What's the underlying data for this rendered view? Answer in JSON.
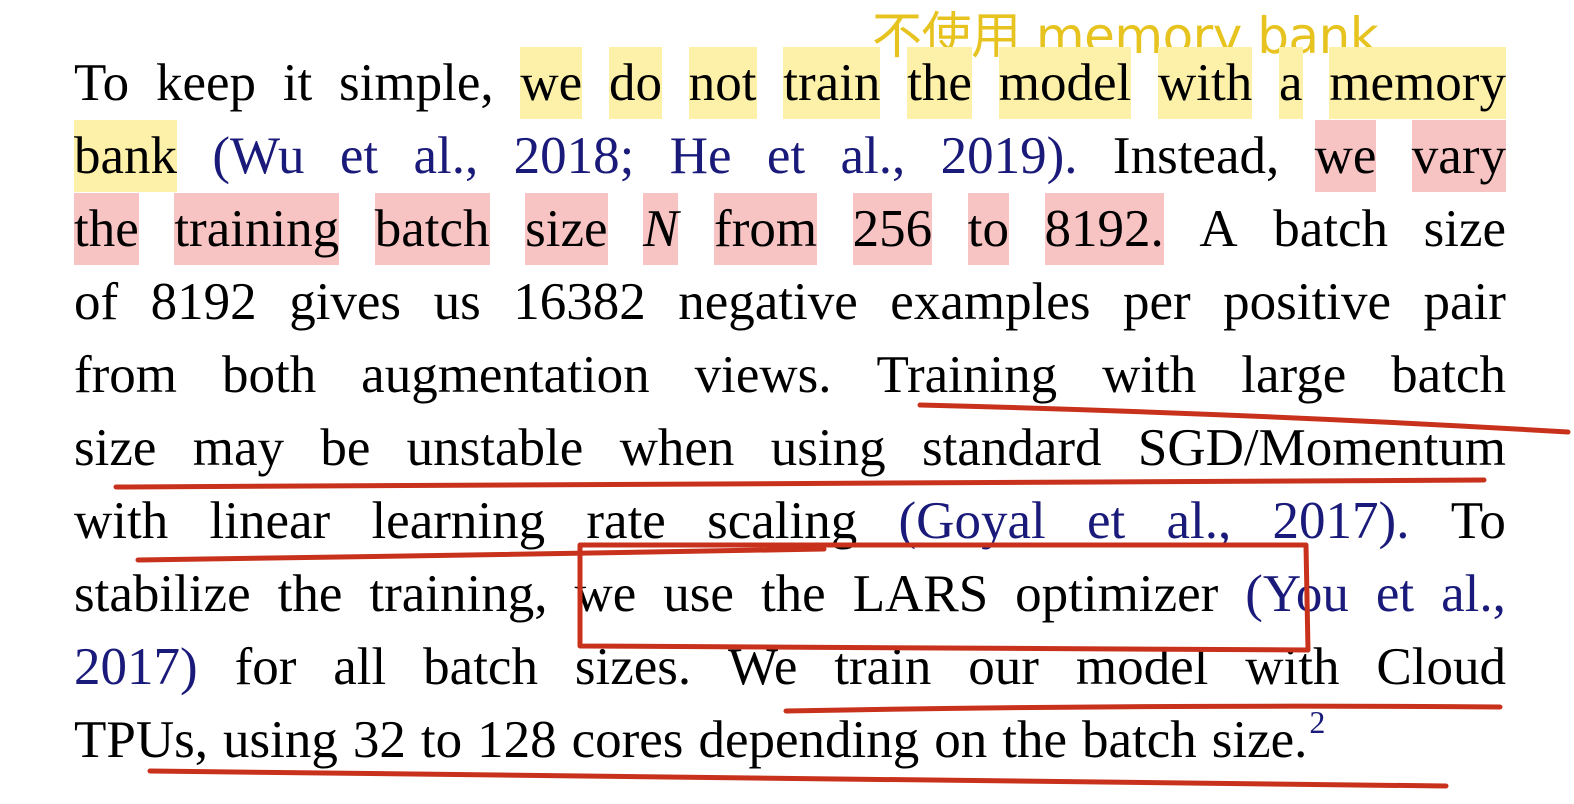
{
  "annotation_note": "不使用 memory bank",
  "colors": {
    "note_text": "#e7c31f",
    "highlight_yellow": "#fdf0a8",
    "highlight_pink": "#f7c3c3",
    "citation_text": "#1a1a7a",
    "pen_mark": "#c8321c"
  },
  "lines": [
    [
      "To",
      "keep",
      "it",
      "simple,",
      "we",
      "do",
      "not",
      "train",
      "the",
      "model",
      "with",
      "a",
      "memory"
    ],
    [
      "bank",
      "(Wu",
      "et",
      "al.,",
      "2018;",
      "He",
      "et",
      "al.,",
      "2019).",
      "Instead,",
      "we",
      "vary"
    ],
    [
      "the",
      "training",
      "batch",
      "size",
      "N",
      "from",
      "256",
      "to",
      "8192.",
      "A",
      "batch",
      "size"
    ],
    [
      "of",
      "8192",
      "gives",
      "us",
      "16382",
      "negative",
      "examples",
      "per",
      "positive",
      "pair"
    ],
    [
      "from",
      "both",
      "augmentation",
      "views.",
      "Training",
      "with",
      "large",
      "batch"
    ],
    [
      "size",
      "may",
      "be",
      "unstable",
      "when",
      "using",
      "standard",
      "SGD/Momentum"
    ],
    [
      "with",
      "linear",
      "learning",
      "rate",
      "scaling",
      "(Goyal",
      "et",
      "al.,",
      "2017).",
      "To"
    ],
    [
      "stabilize",
      "the",
      "training,",
      "we",
      "use",
      "the",
      "LARS",
      "optimizer",
      "(You",
      "et",
      "al.,"
    ],
    [
      "2017)",
      "for",
      "all",
      "batch",
      "sizes.",
      "We",
      "train",
      "our",
      "model",
      "with",
      "Cloud"
    ],
    [
      "TPUs,",
      "using",
      "32",
      "to",
      "128",
      "cores",
      "depending",
      "on",
      "the",
      "batch",
      "size."
    ]
  ],
  "footnote_mark": "2"
}
